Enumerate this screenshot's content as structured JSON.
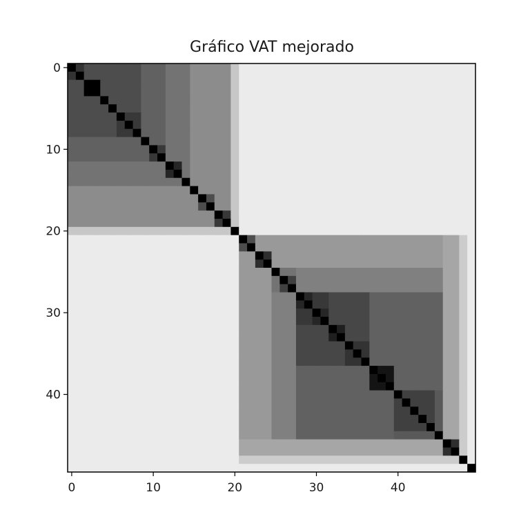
{
  "chart_data": {
    "type": "heatmap",
    "title": "Gráfico VAT mejorado",
    "xlabel": "",
    "ylabel": "",
    "n": 50,
    "colormap": "gray",
    "value_scale": "0 = black (low dissimilarity), 1 = white (high dissimilarity)",
    "xlim": [
      0,
      49
    ],
    "ylim": [
      49,
      0
    ],
    "x_ticks": [
      0,
      10,
      20,
      30,
      40
    ],
    "y_ticks": [
      0,
      10,
      20,
      30,
      40
    ],
    "grid": false,
    "block_boundaries": [
      0,
      20,
      46,
      48,
      49
    ],
    "merge_heights": [
      0.2,
      0.3,
      0.0,
      0.3,
      0.3,
      0.3,
      0.22,
      0.22,
      0.38,
      0.38,
      0.22,
      0.45,
      0.15,
      0.45,
      0.55,
      0.55,
      0.3,
      0.55,
      0.22,
      0.78,
      0.92,
      0.3,
      0.6,
      0.18,
      0.6,
      0.45,
      0.25,
      0.5,
      0.15,
      0.22,
      0.15,
      0.28,
      0.12,
      0.28,
      0.2,
      0.2,
      0.38,
      0.08,
      0.08,
      0.38,
      0.25,
      0.25,
      0.25,
      0.25,
      0.35,
      0.65,
      0.18,
      0.8,
      0.92
    ]
  }
}
